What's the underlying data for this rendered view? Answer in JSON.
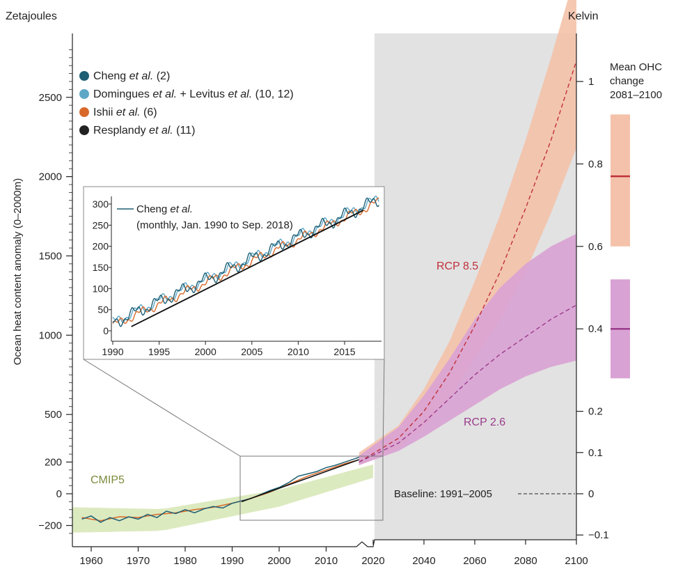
{
  "chart_data": {
    "type": "line",
    "y_left_label": "Zetajoules",
    "y_left_title": "Ocean heat content anomaly (0–2000m)",
    "y_right_label": "Kelvin",
    "y_left_ticks": [
      "2500",
      "2000",
      "1500",
      "1000",
      "500",
      "200",
      "0",
      "−200"
    ],
    "y_right_ticks": [
      "1",
      "0.8",
      "0.6",
      "0.4",
      "0.2",
      "0.1",
      "0",
      "−0.1"
    ],
    "x_ticks": [
      "1960",
      "1970",
      "1980",
      "1990",
      "2000",
      "2010",
      "2020",
      "2040",
      "2060",
      "2080",
      "2100"
    ],
    "legend": [
      {
        "name": "Cheng",
        "suffix": " (2)",
        "color": "#1d5f74"
      },
      {
        "name": "Domingues",
        "suffix": " + Levitus",
        "suffix2": " (10, 12)",
        "color": "#5fa7c6"
      },
      {
        "name": "Ishii",
        "suffix": " (6)",
        "color": "#d8692a"
      },
      {
        "name": "Resplandy",
        "suffix": " (11)",
        "color": "#222222"
      }
    ],
    "etal": "et al.",
    "labels": {
      "cmip5": "CMIP5",
      "rcp85": "RCP 8.5",
      "rcp26": "RCP 2.6",
      "baseline": "Baseline: 1991–2005",
      "mean_ohc": [
        "Mean OHC",
        "change",
        "2081–2100"
      ]
    },
    "rcp85": {
      "color": "#c0303a",
      "band_color": "#f4c2aa",
      "x": [
        2017,
        2030,
        2040,
        2050,
        2060,
        2070,
        2080,
        2090,
        2100
      ],
      "mean": [
        200,
        350,
        520,
        760,
        1060,
        1400,
        1800,
        2230,
        2730
      ],
      "lower": [
        180,
        290,
        420,
        600,
        850,
        1100,
        1400,
        1770,
        2180
      ],
      "upper": [
        260,
        430,
        660,
        960,
        1340,
        1760,
        2230,
        2750,
        3300
      ]
    },
    "rcp26": {
      "color": "#9a3c8c",
      "band_color": "#d9a2d4",
      "x": [
        2017,
        2030,
        2040,
        2050,
        2060,
        2070,
        2080,
        2090,
        2100
      ],
      "mean": [
        200,
        320,
        450,
        600,
        750,
        880,
        990,
        1100,
        1190
      ],
      "lower": [
        180,
        270,
        360,
        460,
        560,
        660,
        740,
        800,
        840
      ],
      "upper": [
        240,
        420,
        620,
        850,
        1100,
        1300,
        1450,
        1560,
        1640
      ]
    },
    "mean_ohc_bars": [
      {
        "scenario": "RCP 8.5",
        "mean_k": 0.77,
        "range_k": [
          0.6,
          0.92
        ]
      },
      {
        "scenario": "RCP 2.6",
        "mean_k": 0.4,
        "range_k": [
          0.28,
          0.52
        ]
      }
    ],
    "inset": {
      "series_label": "Cheng",
      "series_label_rest": "et al.",
      "note": "(monthly, Jan. 1990 to Sep. 2018)",
      "x_ticks": [
        "1990",
        "1995",
        "2000",
        "2005",
        "2010",
        "2015"
      ],
      "y_ticks": [
        "0",
        "50",
        "100",
        "150",
        "200",
        "250",
        "300"
      ],
      "trend": {
        "x": [
          1992,
          2017
        ],
        "y": [
          10,
          285
        ]
      }
    },
    "observations": {
      "cheng": {
        "x": [
          1958,
          1960,
          1962,
          1964,
          1966,
          1968,
          1970,
          1972,
          1974,
          1976,
          1978,
          1980,
          1982,
          1984,
          1986,
          1988,
          1990,
          1992,
          1994,
          1996,
          1998,
          2000,
          2002,
          2004,
          2006,
          2008,
          2010,
          2012,
          2014,
          2016,
          2017
        ],
        "y": [
          -160,
          -140,
          -180,
          -150,
          -170,
          -145,
          -160,
          -130,
          -150,
          -110,
          -125,
          -100,
          -120,
          -95,
          -80,
          -90,
          -60,
          -45,
          -30,
          -5,
          20,
          40,
          70,
          110,
          125,
          140,
          165,
          180,
          200,
          220,
          230
        ]
      },
      "ishii": {
        "x": [
          1958,
          1962,
          1966,
          1970,
          1974,
          1978,
          1982,
          1986,
          1990,
          1994,
          1998,
          2002,
          2006,
          2010,
          2014,
          2017
        ],
        "y": [
          -150,
          -170,
          -145,
          -150,
          -130,
          -120,
          -100,
          -85,
          -60,
          -30,
          10,
          60,
          110,
          150,
          190,
          215
        ]
      }
    }
  }
}
